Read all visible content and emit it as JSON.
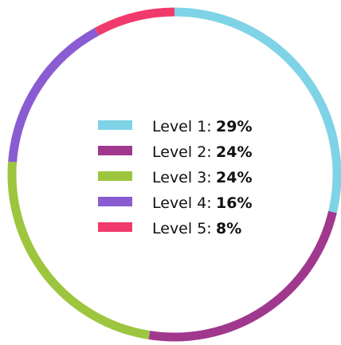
{
  "chart_data": {
    "type": "pie",
    "style": "donut-ring",
    "series": [
      {
        "name": "Level 1",
        "label": "Level 1:",
        "value": 29,
        "value_label": "29%",
        "color": "#7FD3E6"
      },
      {
        "name": "Level 2",
        "label": "Level 2:",
        "value": 24,
        "value_label": "24%",
        "color": "#A0388E"
      },
      {
        "name": "Level 3",
        "label": "Level 3:",
        "value": 24,
        "value_label": "24%",
        "color": "#9DC53E"
      },
      {
        "name": "Level 4",
        "label": "Level 4:",
        "value": 16,
        "value_label": "16%",
        "color": "#8A5CD2"
      },
      {
        "name": "Level 5",
        "label": "Level 5:",
        "value": 8,
        "value_label": "8%",
        "color": "#F03A6B"
      }
    ],
    "start": "top",
    "direction": "clockwise",
    "legend": "center"
  }
}
